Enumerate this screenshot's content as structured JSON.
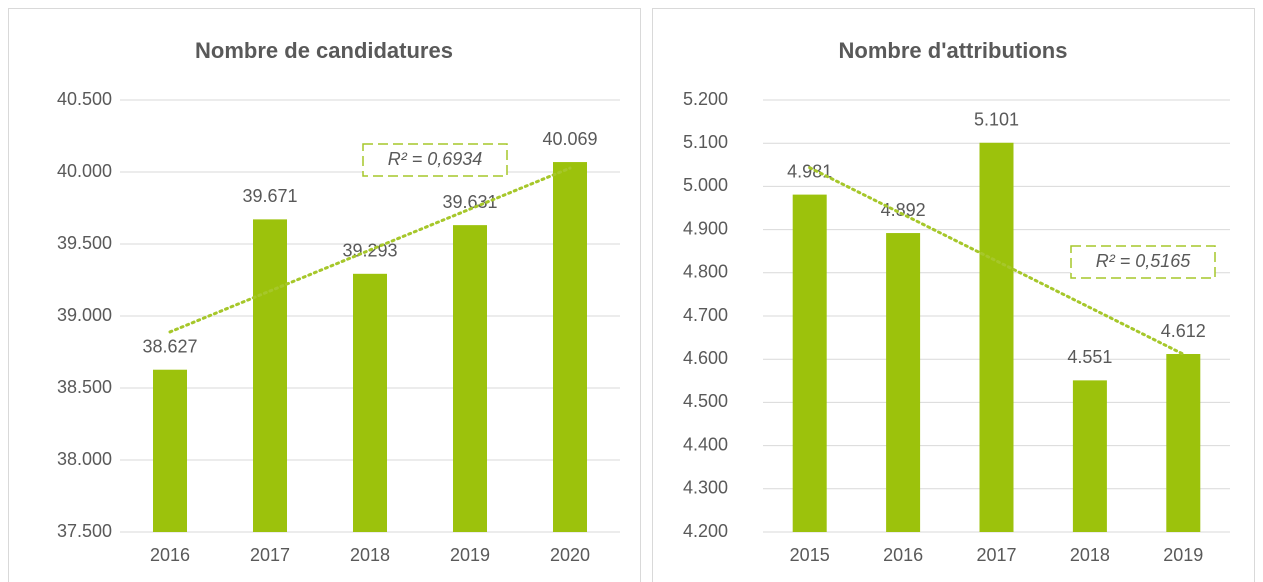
{
  "chart_data": [
    {
      "type": "bar",
      "title": "Nombre de candidatures",
      "categories": [
        "2016",
        "2017",
        "2018",
        "2019",
        "2020"
      ],
      "values": [
        38627,
        39671,
        39293,
        39631,
        40069
      ],
      "value_labels": [
        "38.627",
        "39.671",
        "39.293",
        "39.631",
        "40.069"
      ],
      "color": "#9cc20c",
      "trendline": "linear",
      "annotation": "R² = 0,6934",
      "ylim": [
        37500,
        40500
      ],
      "yticks": [
        {
          "value": 37500,
          "label": "37.500"
        },
        {
          "value": 38000,
          "label": "38.000"
        },
        {
          "value": 38500,
          "label": "38.500"
        },
        {
          "value": 39000,
          "label": "39.000"
        },
        {
          "value": 39500,
          "label": "39.500"
        },
        {
          "value": 40000,
          "label": "40.000"
        },
        {
          "value": 40500,
          "label": "40.500"
        }
      ],
      "grid": true
    },
    {
      "type": "bar",
      "title": "Nombre d'attributions",
      "categories": [
        "2015",
        "2016",
        "2017",
        "2018",
        "2019"
      ],
      "values": [
        4981,
        4892,
        5101,
        4551,
        4612
      ],
      "value_labels": [
        "4.981",
        "4.892",
        "5.101",
        "4.551",
        "4.612"
      ],
      "color": "#9cc20c",
      "trendline": "linear",
      "annotation": "R² = 0,5165",
      "ylim": [
        4200,
        5200
      ],
      "yticks": [
        {
          "value": 4200,
          "label": "4.200"
        },
        {
          "value": 4300,
          "label": "4.300"
        },
        {
          "value": 4400,
          "label": "4.400"
        },
        {
          "value": 4500,
          "label": "4.500"
        },
        {
          "value": 4600,
          "label": "4.600"
        },
        {
          "value": 4700,
          "label": "4.700"
        },
        {
          "value": 4800,
          "label": "4.800"
        },
        {
          "value": 4900,
          "label": "4.900"
        },
        {
          "value": 5000,
          "label": "5.000"
        },
        {
          "value": 5100,
          "label": "5.100"
        },
        {
          "value": 5200,
          "label": "5.200"
        }
      ],
      "grid": true
    }
  ]
}
